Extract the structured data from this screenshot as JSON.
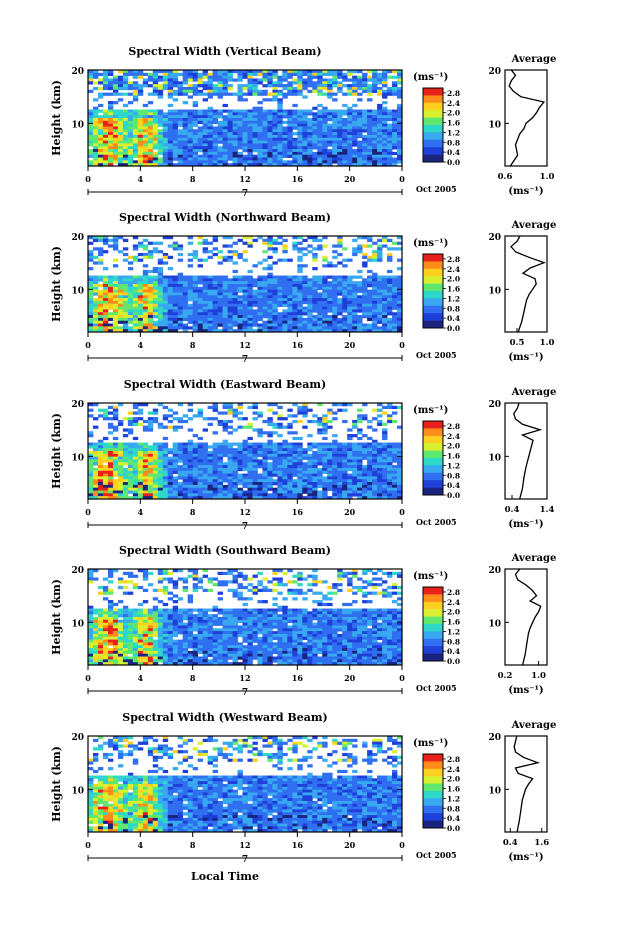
{
  "figure": {
    "y_axis_label": "Height (km)",
    "x_axis_label": "Local Time",
    "date_label": "Oct 2005",
    "day_label": "7",
    "x_ticks": [
      "0",
      "4",
      "8",
      "12",
      "16",
      "20",
      "0"
    ],
    "y_ticks": [
      "10",
      "20"
    ],
    "colorbar_unit": "(ms⁻¹)",
    "colorbar_ticks": [
      "2.8",
      "2.4",
      "2.0",
      "1.6",
      "1.2",
      "0.8",
      "0.4",
      "0.0"
    ],
    "profile_title": "Average",
    "profile_unit": "(ms⁻¹)",
    "colors": {
      "scale": [
        "#1a237e",
        "#1e3fd8",
        "#2f6ff0",
        "#38a8f0",
        "#2ed8c8",
        "#5fe870",
        "#d8f030",
        "#ffd020",
        "#ff8c1a",
        "#e8201a"
      ],
      "axis": "#000000",
      "background": "#ffffff"
    }
  },
  "chart_data": [
    {
      "type": "heatmap",
      "title": "Spectral Width (Vertical Beam)",
      "xlabel": "Local Time",
      "ylabel": "Height (km)",
      "xlim": [
        0,
        24
      ],
      "ylim": [
        2,
        20
      ],
      "colorbar_range": [
        0.0,
        3.0
      ],
      "profile": {
        "title": "Average",
        "xlabel": "(ms⁻¹)",
        "xlim": [
          0.6,
          1.0
        ],
        "x_ticks": [
          "0.6",
          "1.0"
        ],
        "heights": [
          2,
          4,
          6,
          8,
          9,
          10,
          11,
          12,
          13,
          14,
          15,
          16,
          17,
          18,
          19,
          20
        ],
        "values": [
          0.65,
          0.72,
          0.7,
          0.74,
          0.78,
          0.8,
          0.86,
          0.9,
          0.93,
          0.97,
          0.75,
          0.68,
          0.64,
          0.66,
          0.7,
          0.66
        ]
      }
    },
    {
      "type": "heatmap",
      "title": "Spectral Width (Northward Beam)",
      "xlabel": "Local Time",
      "ylabel": "Height (km)",
      "xlim": [
        0,
        24
      ],
      "ylim": [
        2,
        20
      ],
      "colorbar_range": [
        0.0,
        3.0
      ],
      "profile": {
        "title": "Average",
        "xlabel": "(ms⁻¹)",
        "xlim": [
          0.3,
          1.0
        ],
        "x_ticks": [
          "0.5",
          "1.0"
        ],
        "heights": [
          2,
          4,
          6,
          8,
          9,
          10,
          11,
          12,
          13,
          14,
          15,
          16,
          17,
          18,
          19,
          20
        ],
        "values": [
          0.52,
          0.58,
          0.62,
          0.66,
          0.7,
          0.76,
          0.82,
          0.8,
          0.6,
          0.72,
          0.95,
          0.7,
          0.48,
          0.4,
          0.5,
          0.55
        ]
      }
    },
    {
      "type": "heatmap",
      "title": "Spectral Width (Eastward Beam)",
      "xlabel": "Local Time",
      "ylabel": "Height (km)",
      "xlim": [
        0,
        24
      ],
      "ylim": [
        2,
        20
      ],
      "colorbar_range": [
        0.0,
        3.0
      ],
      "profile": {
        "title": "Average",
        "xlabel": "(ms⁻¹)",
        "xlim": [
          0.2,
          1.4
        ],
        "x_ticks": [
          "0.4",
          "1.4"
        ],
        "heights": [
          2,
          4,
          6,
          8,
          9,
          10,
          11,
          12,
          13,
          14,
          15,
          16,
          17,
          18,
          19,
          20
        ],
        "values": [
          0.62,
          0.7,
          0.74,
          0.8,
          0.84,
          0.88,
          0.92,
          0.96,
          1.0,
          0.7,
          1.2,
          0.7,
          0.5,
          0.45,
          0.55,
          0.6
        ]
      }
    },
    {
      "type": "heatmap",
      "title": "Spectral Width (Southward Beam)",
      "xlabel": "Local Time",
      "ylabel": "Height (km)",
      "xlim": [
        0,
        24
      ],
      "ylim": [
        2,
        20
      ],
      "colorbar_range": [
        0.0,
        3.0
      ],
      "profile": {
        "title": "Average",
        "xlabel": "(ms⁻¹)",
        "xlim": [
          0.2,
          1.2
        ],
        "x_ticks": [
          "0.2",
          "1.0"
        ],
        "heights": [
          2,
          4,
          6,
          8,
          9,
          10,
          11,
          12,
          13,
          14,
          15,
          16,
          17,
          18,
          19,
          20
        ],
        "values": [
          0.62,
          0.68,
          0.72,
          0.76,
          0.8,
          0.86,
          0.92,
          1.0,
          1.05,
          0.8,
          0.95,
          0.85,
          0.7,
          0.5,
          0.45,
          0.55
        ]
      }
    },
    {
      "type": "heatmap",
      "title": "Spectral Width (Westward Beam)",
      "xlabel": "Local Time",
      "ylabel": "Height (km)",
      "xlim": [
        0,
        24
      ],
      "ylim": [
        2,
        20
      ],
      "colorbar_range": [
        0.0,
        3.0
      ],
      "profile": {
        "title": "Average",
        "xlabel": "(ms⁻¹)",
        "xlim": [
          0.2,
          1.8
        ],
        "x_ticks": [
          "0.4",
          "1.6"
        ],
        "heights": [
          2,
          4,
          6,
          8,
          9,
          10,
          11,
          12,
          13,
          14,
          15,
          16,
          17,
          18,
          19,
          20
        ],
        "values": [
          0.66,
          0.74,
          0.8,
          0.86,
          0.92,
          0.98,
          1.1,
          1.25,
          0.7,
          0.6,
          1.45,
          0.9,
          0.6,
          0.55,
          0.6,
          0.65
        ]
      }
    }
  ]
}
